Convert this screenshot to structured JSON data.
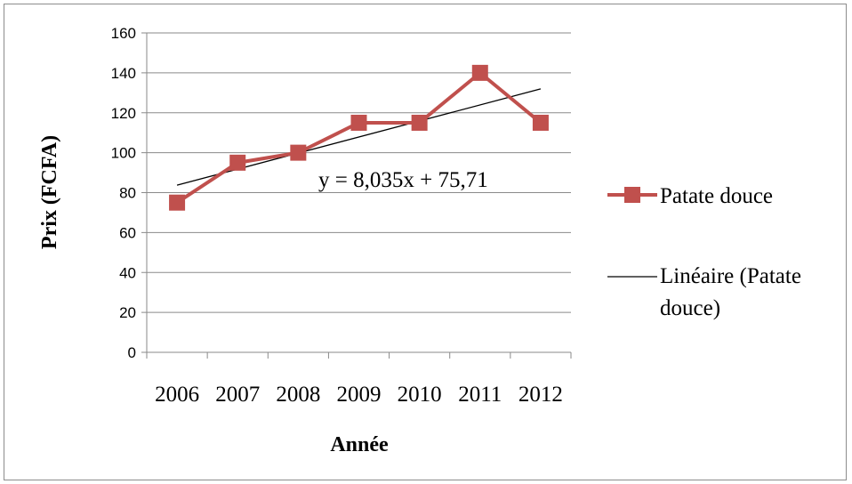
{
  "chart_data": {
    "type": "line",
    "categories": [
      "2006",
      "2007",
      "2008",
      "2009",
      "2010",
      "2011",
      "2012"
    ],
    "series": [
      {
        "name": "Patate douce",
        "values": [
          75,
          95,
          100,
          115,
          115,
          140,
          115
        ],
        "color": "#c0504d",
        "marker": "square"
      },
      {
        "name": "Linéaire (Patate douce)",
        "trend": {
          "slope": 8.035,
          "intercept": 75.71
        },
        "color": "#000000",
        "legend_lines": [
          "Linéaire (Patate",
          "douce)"
        ]
      }
    ],
    "annotation": "y = 8,035x + 75,71",
    "xlabel": "Année",
    "ylabel": "Prix (FCFA)",
    "ylim": [
      0,
      160
    ],
    "yticks": [
      0,
      20,
      40,
      60,
      80,
      100,
      120,
      140,
      160
    ],
    "grid": true,
    "legend_position": "right"
  }
}
